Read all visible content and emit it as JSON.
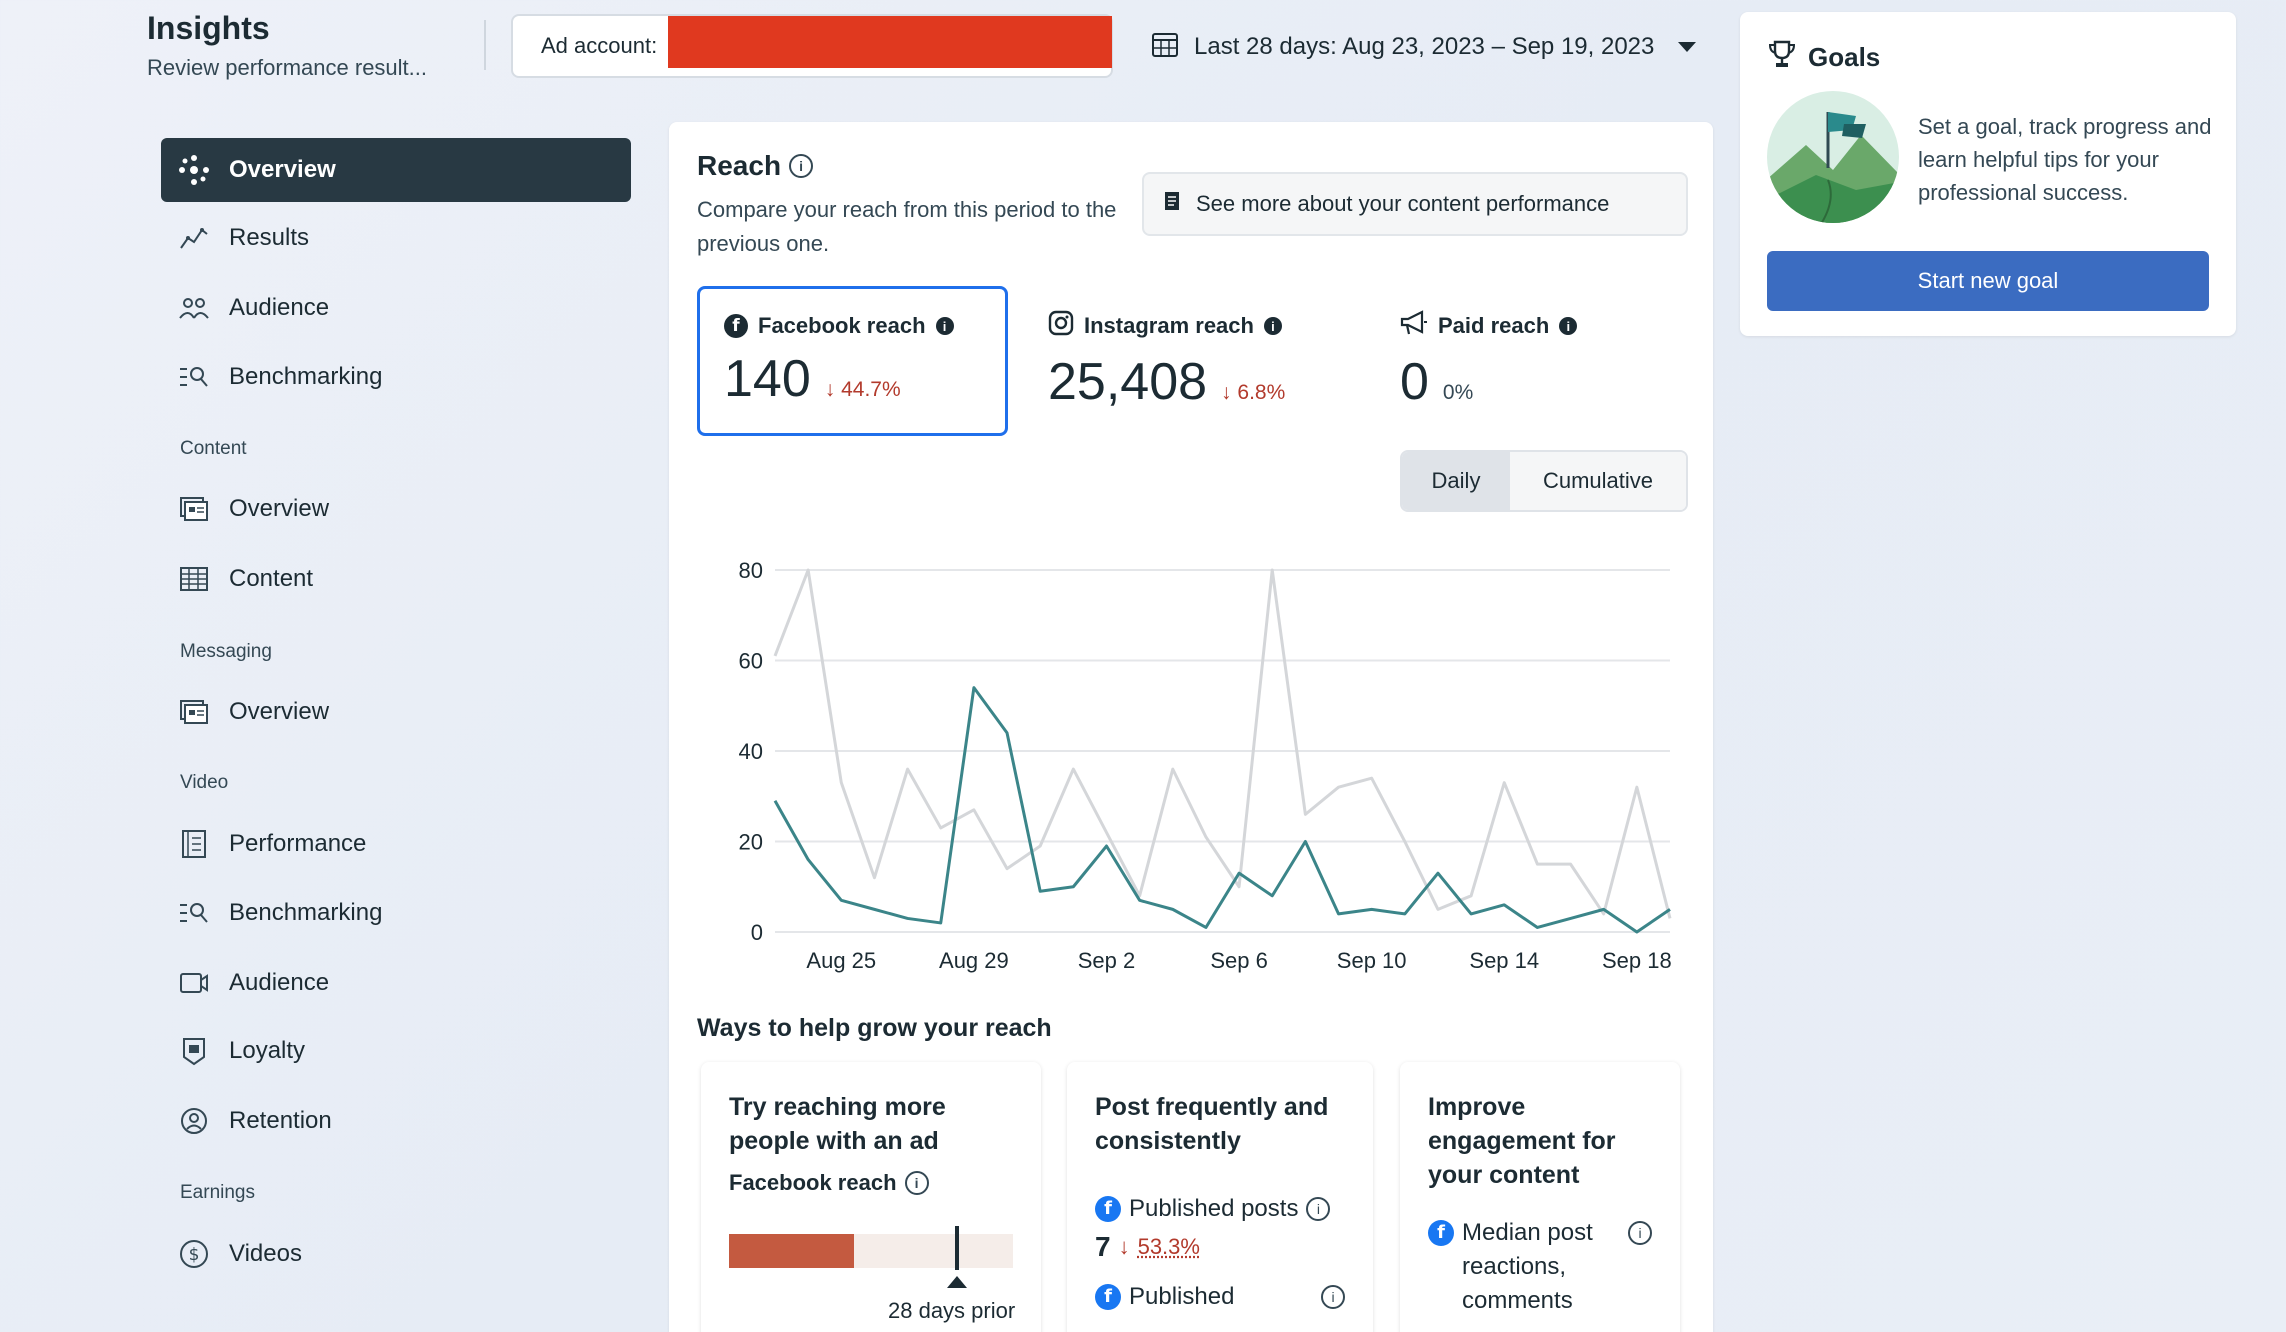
{
  "header": {
    "title": "Insights",
    "subtitle": "Review performance result...",
    "ad_account_label": "Ad account:",
    "date_range": "Last 28 days: Aug 23, 2023 – Sep 19, 2023"
  },
  "sidebar": {
    "items": [
      {
        "label": "Overview",
        "icon": "overview-icon",
        "active": true
      },
      {
        "label": "Results",
        "icon": "results-icon"
      },
      {
        "label": "Audience",
        "icon": "audience-icon"
      },
      {
        "label": "Benchmarking",
        "icon": "benchmarking-icon"
      }
    ],
    "sections": {
      "content": {
        "title": "Content",
        "items": [
          {
            "label": "Overview"
          },
          {
            "label": "Content"
          }
        ]
      },
      "messaging": {
        "title": "Messaging",
        "items": [
          {
            "label": "Overview"
          }
        ]
      },
      "video": {
        "title": "Video",
        "items": [
          {
            "label": "Performance"
          },
          {
            "label": "Benchmarking"
          },
          {
            "label": "Audience"
          },
          {
            "label": "Loyalty"
          },
          {
            "label": "Retention"
          }
        ]
      },
      "earnings": {
        "title": "Earnings",
        "items": [
          {
            "label": "Videos"
          }
        ]
      }
    }
  },
  "reach": {
    "title": "Reach",
    "description": "Compare your reach from this period to the previous one.",
    "see_more": "See more about your content performance",
    "metrics": [
      {
        "label": "Facebook reach",
        "value": "140",
        "delta": "44.7%"
      },
      {
        "label": "Instagram reach",
        "value": "25,408",
        "delta": "6.8%"
      },
      {
        "label": "Paid reach",
        "value": "0",
        "delta": "0%"
      }
    ],
    "toggle": {
      "daily": "Daily",
      "cumulative": "Cumulative"
    }
  },
  "chart_data": {
    "type": "line",
    "x": [
      "Aug 23",
      "Aug 24",
      "Aug 25",
      "Aug 26",
      "Aug 27",
      "Aug 28",
      "Aug 29",
      "Aug 30",
      "Aug 31",
      "Sep 1",
      "Sep 2",
      "Sep 3",
      "Sep 4",
      "Sep 5",
      "Sep 6",
      "Sep 7",
      "Sep 8",
      "Sep 9",
      "Sep 10",
      "Sep 11",
      "Sep 12",
      "Sep 13",
      "Sep 14",
      "Sep 15",
      "Sep 16",
      "Sep 17",
      "Sep 18",
      "Sep 19"
    ],
    "xticks": [
      "Aug 25",
      "Aug 29",
      "Sep 2",
      "Sep 6",
      "Sep 10",
      "Sep 14",
      "Sep 18"
    ],
    "yticks": [
      0,
      20,
      40,
      60,
      80
    ],
    "ylim": [
      0,
      80
    ],
    "grid": true,
    "series": [
      {
        "color": "#3b8589",
        "values": [
          29,
          16,
          7,
          5,
          3,
          2,
          54,
          44,
          9,
          10,
          19,
          7,
          5,
          1,
          13,
          8,
          20,
          4,
          5,
          4,
          13,
          4,
          6,
          1,
          3,
          5,
          0,
          5
        ]
      },
      {
        "color": "#d4d6d9",
        "values": [
          61,
          80,
          33,
          12,
          36,
          23,
          27,
          14,
          19,
          36,
          22,
          8,
          36,
          21,
          10,
          80,
          26,
          32,
          34,
          20,
          5,
          8,
          33,
          15,
          15,
          4,
          32,
          3
        ]
      }
    ]
  },
  "grow": {
    "title": "Ways to help grow your reach",
    "cards": [
      {
        "title": "Try reaching more people with an ad",
        "sub": "Facebook reach",
        "caption": "28 days prior",
        "fill": 0.44
      },
      {
        "title": "Post frequently and consistently",
        "line1": "Published posts",
        "value": "7",
        "delta": "53.3%",
        "line2": "Published"
      },
      {
        "title": "Improve engagement for your content",
        "line1": "Median post",
        "line2": "reactions,",
        "line3": "comments"
      }
    ]
  },
  "goals": {
    "title": "Goals",
    "description": "Set a goal, track progress and learn helpful tips for your professional success.",
    "button": "Start new goal"
  }
}
